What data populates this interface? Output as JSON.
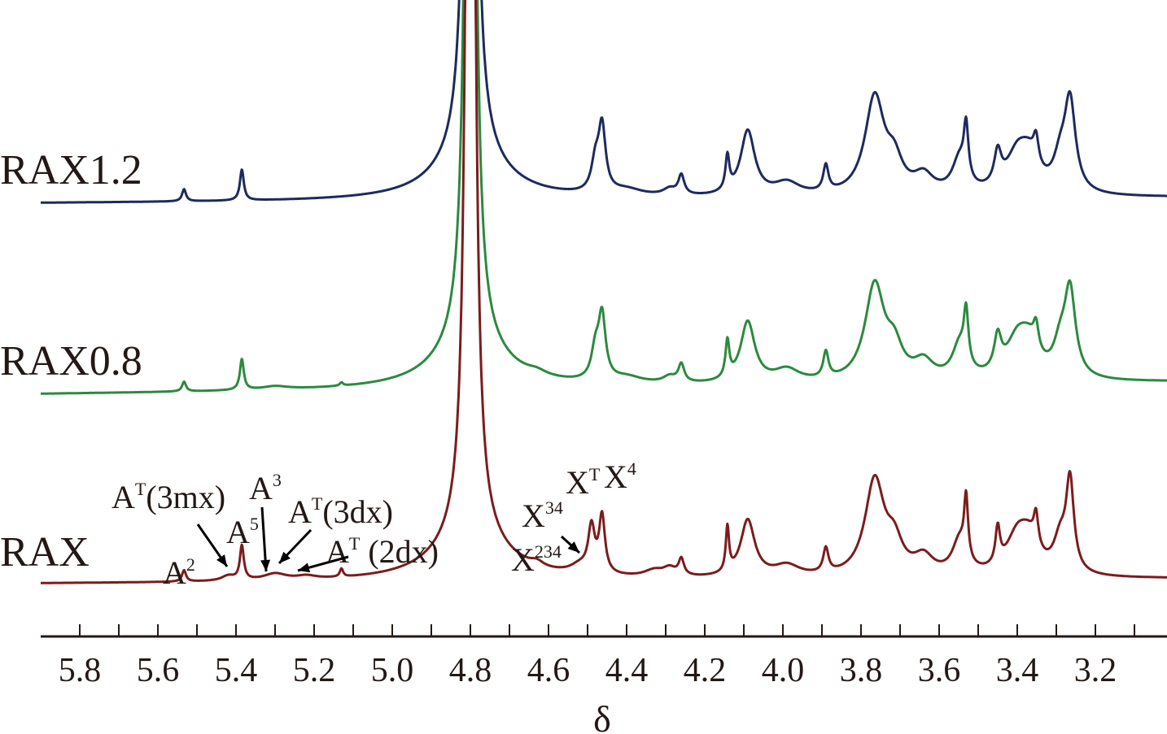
{
  "chart_data": {
    "type": "line",
    "title": "",
    "xlabel": "δ",
    "ylabel": "",
    "xlim": [
      5.9,
      3.0
    ],
    "x_reversed": true,
    "grid": false,
    "ticks": [
      "5.8",
      "5.6",
      "5.4",
      "5.2",
      "5.0",
      "4.8",
      "4.6",
      "4.4",
      "4.2",
      "4.0",
      "3.8",
      "3.6",
      "3.4",
      "3.2"
    ],
    "minor_tick_step": 0.1,
    "intensity_units": "arbitrary (stacked traces, peaks as Lorentzian center/height/halfwidth)",
    "series": [
      {
        "name": "RAX1.2",
        "color": "#1d2a5c",
        "baseline": [
          250,
          243
        ],
        "peaks": [
          [
            5.533,
            15,
            0.006
          ],
          [
            5.385,
            38,
            0.006
          ],
          [
            4.8,
            2200,
            0.009
          ],
          [
            4.8,
            55,
            0.1
          ],
          [
            4.463,
            80,
            0.011
          ],
          [
            4.48,
            35,
            0.012
          ],
          [
            4.4,
            8,
            0.05
          ],
          [
            4.26,
            24,
            0.009
          ],
          [
            4.29,
            8,
            0.02
          ],
          [
            4.142,
            42,
            0.006
          ],
          [
            4.09,
            80,
            0.022
          ],
          [
            3.99,
            16,
            0.04
          ],
          [
            3.89,
            32,
            0.008
          ],
          [
            3.765,
            120,
            0.03
          ],
          [
            3.715,
            35,
            0.025
          ],
          [
            3.64,
            22,
            0.03
          ],
          [
            3.531,
            65,
            0.007
          ],
          [
            3.548,
            40,
            0.022
          ],
          [
            3.45,
            40,
            0.011
          ],
          [
            3.4,
            45,
            0.035
          ],
          [
            3.352,
            32,
            0.008
          ],
          [
            3.37,
            35,
            0.03
          ],
          [
            3.265,
            110,
            0.017
          ],
          [
            3.29,
            35,
            0.02
          ]
        ]
      },
      {
        "name": "RAX0.8",
        "color": "#2b8a3e",
        "baseline": [
          485,
          470
        ],
        "peaks": [
          [
            5.533,
            12,
            0.006
          ],
          [
            5.385,
            38,
            0.006
          ],
          [
            5.3,
            4,
            0.04
          ],
          [
            5.13,
            4,
            0.005
          ],
          [
            4.8,
            2200,
            0.009
          ],
          [
            4.8,
            55,
            0.1
          ],
          [
            4.63,
            5,
            0.03
          ],
          [
            4.463,
            78,
            0.011
          ],
          [
            4.48,
            35,
            0.012
          ],
          [
            4.4,
            8,
            0.05
          ],
          [
            4.26,
            22,
            0.009
          ],
          [
            4.29,
            8,
            0.02
          ],
          [
            4.142,
            45,
            0.006
          ],
          [
            4.09,
            75,
            0.022
          ],
          [
            3.99,
            16,
            0.04
          ],
          [
            3.89,
            32,
            0.008
          ],
          [
            3.765,
            118,
            0.03
          ],
          [
            3.715,
            35,
            0.025
          ],
          [
            3.64,
            22,
            0.03
          ],
          [
            3.531,
            65,
            0.007
          ],
          [
            3.548,
            40,
            0.022
          ],
          [
            3.45,
            42,
            0.011
          ],
          [
            3.4,
            45,
            0.035
          ],
          [
            3.352,
            30,
            0.008
          ],
          [
            3.37,
            35,
            0.03
          ],
          [
            3.265,
            105,
            0.017
          ],
          [
            3.29,
            35,
            0.02
          ]
        ]
      },
      {
        "name": "RAX",
        "color": "#7b1c1c",
        "baseline": [
          718,
          712
        ],
        "peaks": [
          [
            5.533,
            14,
            0.006
          ],
          [
            5.42,
            6,
            0.02
          ],
          [
            5.385,
            42,
            0.006
          ],
          [
            5.3,
            8,
            0.035
          ],
          [
            5.22,
            4,
            0.03
          ],
          [
            5.13,
            10,
            0.005
          ],
          [
            4.8,
            2200,
            0.009
          ],
          [
            4.8,
            55,
            0.1
          ],
          [
            4.63,
            6,
            0.02
          ],
          [
            4.52,
            10,
            0.03
          ],
          [
            4.49,
            55,
            0.01
          ],
          [
            4.463,
            70,
            0.009
          ],
          [
            4.33,
            8,
            0.03
          ],
          [
            4.26,
            20,
            0.008
          ],
          [
            4.29,
            10,
            0.02
          ],
          [
            4.142,
            55,
            0.005
          ],
          [
            4.09,
            70,
            0.022
          ],
          [
            3.99,
            14,
            0.04
          ],
          [
            3.89,
            30,
            0.008
          ],
          [
            3.765,
            118,
            0.03
          ],
          [
            3.715,
            35,
            0.025
          ],
          [
            3.64,
            22,
            0.03
          ],
          [
            3.531,
            75,
            0.006
          ],
          [
            3.548,
            40,
            0.022
          ],
          [
            3.45,
            45,
            0.007
          ],
          [
            3.4,
            45,
            0.035
          ],
          [
            3.352,
            38,
            0.007
          ],
          [
            3.37,
            35,
            0.03
          ],
          [
            3.265,
            110,
            0.012
          ],
          [
            3.29,
            40,
            0.02
          ]
        ]
      }
    ],
    "annotations": [
      {
        "base": "A",
        "sup": "2"
      },
      {
        "base": "A",
        "sup": "T",
        "tail": "(3mx)"
      },
      {
        "base": "A",
        "sup": "5"
      },
      {
        "base": "A",
        "sup": "3"
      },
      {
        "base": "A",
        "sup": "T",
        "tail": "(3dx)"
      },
      {
        "base": "A",
        "sup": "T",
        "tail": " (2dx)"
      },
      {
        "base": "X",
        "sup": "234"
      },
      {
        "base": "X",
        "sup": "34"
      },
      {
        "base": "X",
        "sup": "T"
      },
      {
        "base": "X",
        "sup": "4"
      }
    ]
  }
}
